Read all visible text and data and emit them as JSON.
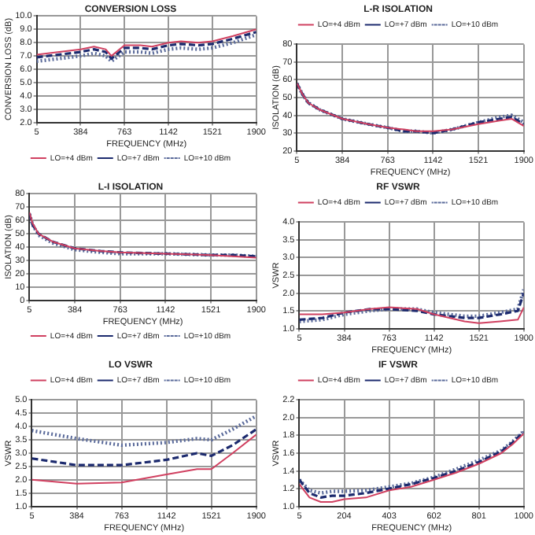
{
  "chart_data": [
    {
      "type": "line",
      "title": "CONVERSION LOSS",
      "xlabel": "FREQUENCY (MHz)",
      "ylabel": "CONVERSION LOSS (dB)",
      "xlim": [
        5,
        1900
      ],
      "xticks": [
        5,
        384,
        763,
        1142,
        1521,
        1900
      ],
      "ylim": [
        2,
        10
      ],
      "yticks": [
        {
          "value": 2,
          "label": "2.0"
        },
        {
          "value": 3,
          "label": "3.0"
        },
        {
          "value": 4,
          "label": "4.0"
        },
        {
          "value": 5,
          "label": "5.0"
        },
        {
          "value": 6,
          "label": "6.0"
        },
        {
          "value": 7,
          "label": "7.0"
        },
        {
          "value": 8,
          "label": "8.0"
        },
        {
          "value": 9,
          "label": "9.0"
        },
        {
          "value": 10,
          "label": "10.0"
        }
      ],
      "grid": true,
      "legend": "bottom",
      "marker": "none",
      "series": [
        {
          "name": "LO=+4 dBm",
          "color": "#d04060",
          "line_style": "solid",
          "x": [
            5,
            200,
            384,
            500,
            600,
            650,
            763,
            900,
            1000,
            1142,
            1250,
            1400,
            1521,
            1700,
            1900
          ],
          "values": [
            7.1,
            7.3,
            7.5,
            7.7,
            7.5,
            7.0,
            7.8,
            7.8,
            7.7,
            8.0,
            8.1,
            8.0,
            8.1,
            8.5,
            9.0
          ]
        },
        {
          "name": "LO=+7 dBm",
          "color": "#1c2a6e",
          "line_style": "dashed",
          "x": [
            5,
            200,
            384,
            500,
            600,
            650,
            763,
            900,
            1000,
            1142,
            1250,
            1400,
            1521,
            1700,
            1900
          ],
          "values": [
            6.9,
            7.1,
            7.3,
            7.5,
            7.3,
            6.8,
            7.6,
            7.6,
            7.5,
            7.8,
            7.9,
            7.8,
            7.9,
            8.3,
            8.8
          ]
        },
        {
          "name": "LO=+10 dBm",
          "color": "#5a6a9a",
          "line_style": "dotted",
          "x": [
            5,
            200,
            384,
            500,
            600,
            650,
            763,
            900,
            1000,
            1142,
            1250,
            1400,
            1521,
            1700,
            1900
          ],
          "values": [
            6.6,
            6.8,
            7.0,
            7.2,
            7.0,
            6.6,
            7.3,
            7.3,
            7.2,
            7.5,
            7.6,
            7.5,
            7.6,
            8.0,
            8.6
          ]
        }
      ]
    },
    {
      "type": "line",
      "title": "L-R ISOLATION",
      "xlabel": "FREQUENCY (MHz)",
      "ylabel": "ISOLATION (dB)",
      "xlim": [
        5,
        1900
      ],
      "xticks": [
        5,
        384,
        763,
        1142,
        1521,
        1900
      ],
      "ylim": [
        20,
        80
      ],
      "yticks": [
        20,
        30,
        40,
        50,
        60,
        70,
        80
      ],
      "grid": true,
      "legend": "top",
      "marker": "none",
      "series": [
        {
          "name": "LO=+4 dBm",
          "color": "#d04060",
          "line_style": "solid",
          "x": [
            5,
            50,
            100,
            200,
            384,
            600,
            763,
            900,
            1000,
            1142,
            1300,
            1521,
            1700,
            1800,
            1900
          ],
          "values": [
            58,
            52,
            47,
            43,
            38,
            35,
            33,
            32,
            31,
            31,
            32,
            35,
            37,
            38,
            34
          ]
        },
        {
          "name": "LO=+7 dBm",
          "color": "#1c2a6e",
          "line_style": "dashed",
          "x": [
            5,
            50,
            100,
            200,
            384,
            600,
            763,
            900,
            1000,
            1142,
            1300,
            1521,
            1700,
            1800,
            1900
          ],
          "values": [
            58,
            52,
            47,
            43,
            38,
            35,
            33,
            31,
            31,
            30,
            32,
            36,
            38,
            39,
            35
          ]
        },
        {
          "name": "LO=+10 dBm",
          "color": "#5a6a9a",
          "line_style": "dotted",
          "x": [
            5,
            50,
            100,
            200,
            384,
            600,
            763,
            900,
            1000,
            1142,
            1300,
            1521,
            1700,
            1800,
            1900
          ],
          "values": [
            58,
            52,
            47,
            43,
            38,
            35,
            33,
            31,
            31,
            30,
            32,
            36,
            39,
            40,
            36
          ]
        }
      ]
    },
    {
      "type": "line",
      "title": "L-I ISOLATION",
      "xlabel": "FREQUENCY (MHz)",
      "ylabel": "ISOLATION (dB)",
      "xlim": [
        5,
        1900
      ],
      "xticks": [
        5,
        384,
        763,
        1142,
        1521,
        1900
      ],
      "ylim": [
        0,
        80
      ],
      "yticks": [
        0,
        10,
        20,
        30,
        40,
        50,
        60,
        70,
        80
      ],
      "grid": true,
      "legend": "bottom",
      "marker": "none",
      "series": [
        {
          "name": "LO=+4 dBm",
          "color": "#d04060",
          "line_style": "solid",
          "x": [
            5,
            30,
            80,
            200,
            384,
            600,
            763,
            1142,
            1521,
            1700,
            1900
          ],
          "values": [
            66,
            58,
            50,
            44,
            39,
            37,
            36,
            35,
            34,
            33,
            32
          ]
        },
        {
          "name": "LO=+7 dBm",
          "color": "#1c2a6e",
          "line_style": "dashed",
          "x": [
            5,
            30,
            80,
            200,
            384,
            600,
            763,
            1142,
            1521,
            1700,
            1900
          ],
          "values": [
            65,
            57,
            50,
            44,
            39,
            37,
            36,
            35,
            34,
            34,
            33
          ]
        },
        {
          "name": "LO=+10 dBm",
          "color": "#5a6a9a",
          "line_style": "dotted",
          "x": [
            5,
            30,
            80,
            200,
            384,
            600,
            763,
            1142,
            1521,
            1700,
            1900
          ],
          "values": [
            65,
            57,
            49,
            43,
            38,
            36,
            35,
            35,
            34,
            34,
            33
          ]
        }
      ]
    },
    {
      "type": "line",
      "title": "RF VSWR",
      "xlabel": "FREQUENCY (MHz)",
      "ylabel": "VSWR",
      "xlim": [
        5,
        1900
      ],
      "xticks": [
        5,
        384,
        763,
        1142,
        1521,
        1900
      ],
      "ylim": [
        1,
        4
      ],
      "yticks": [
        {
          "value": 1,
          "label": "1.0"
        },
        1.5,
        {
          "value": 2,
          "label": "2.0"
        },
        2.5,
        {
          "value": 3,
          "label": "3.0"
        },
        3.5,
        {
          "value": 4,
          "label": "4.0"
        }
      ],
      "grid": true,
      "legend": "top",
      "marker": "none",
      "series": [
        {
          "name": "LO=+4 dBm",
          "color": "#d04060",
          "line_style": "solid",
          "x": [
            5,
            200,
            384,
            600,
            763,
            1000,
            1142,
            1400,
            1521,
            1700,
            1850,
            1900
          ],
          "values": [
            1.4,
            1.4,
            1.45,
            1.55,
            1.6,
            1.55,
            1.4,
            1.2,
            1.15,
            1.2,
            1.25,
            1.6
          ]
        },
        {
          "name": "LO=+7 dBm",
          "color": "#1c2a6e",
          "line_style": "dashed",
          "x": [
            5,
            200,
            384,
            600,
            763,
            1000,
            1142,
            1400,
            1521,
            1700,
            1850,
            1900
          ],
          "values": [
            1.25,
            1.3,
            1.45,
            1.55,
            1.55,
            1.5,
            1.4,
            1.3,
            1.3,
            1.4,
            1.5,
            2.0
          ]
        },
        {
          "name": "LO=+10 dBm",
          "color": "#5a6a9a",
          "line_style": "dotted",
          "x": [
            5,
            200,
            384,
            600,
            763,
            1000,
            1142,
            1400,
            1521,
            1700,
            1850,
            1900
          ],
          "values": [
            1.2,
            1.25,
            1.4,
            1.5,
            1.55,
            1.55,
            1.45,
            1.35,
            1.35,
            1.45,
            1.55,
            2.1
          ]
        }
      ]
    },
    {
      "type": "line",
      "title": "LO VSWR",
      "xlabel": "FREQUENCY (MHz)",
      "ylabel": "VSWR",
      "xlim": [
        5,
        1900
      ],
      "xticks": [
        5,
        384,
        763,
        1142,
        1521,
        1900
      ],
      "ylim": [
        1,
        5
      ],
      "yticks": [
        {
          "value": 1,
          "label": "1.0"
        },
        1.5,
        {
          "value": 2,
          "label": "2.0"
        },
        2.5,
        {
          "value": 3,
          "label": "3.0"
        },
        3.5,
        {
          "value": 4,
          "label": "4.0"
        },
        4.5,
        {
          "value": 5,
          "label": "5.0"
        }
      ],
      "grid": true,
      "legend": "top",
      "marker": "none",
      "series": [
        {
          "name": "LO=+4 dBm",
          "color": "#d04060",
          "line_style": "solid",
          "x": [
            5,
            384,
            763,
            1142,
            1400,
            1521,
            1700,
            1900
          ],
          "values": [
            2.0,
            1.85,
            1.9,
            2.2,
            2.4,
            2.4,
            3.0,
            3.7
          ]
        },
        {
          "name": "LO=+7 dBm",
          "color": "#1c2a6e",
          "line_style": "dashed",
          "x": [
            5,
            384,
            763,
            1142,
            1400,
            1521,
            1700,
            1900
          ],
          "values": [
            2.8,
            2.55,
            2.55,
            2.75,
            3.0,
            2.9,
            3.3,
            3.9
          ]
        },
        {
          "name": "LO=+10 dBm",
          "color": "#5a6a9a",
          "line_style": "dotted",
          "x": [
            5,
            384,
            763,
            1142,
            1400,
            1521,
            1700,
            1900
          ],
          "values": [
            3.85,
            3.55,
            3.3,
            3.4,
            3.55,
            3.5,
            3.9,
            4.4
          ]
        }
      ]
    },
    {
      "type": "line",
      "title": "IF VSWR",
      "xlabel": "FREQUENCY (MHz)",
      "ylabel": "VSWR",
      "xlim": [
        5,
        1000
      ],
      "xticks": [
        5,
        204,
        403,
        602,
        801,
        1000
      ],
      "ylim": [
        1,
        2.2
      ],
      "yticks": [
        {
          "value": 1,
          "label": "1.0"
        },
        1.2,
        1.4,
        1.6,
        1.8,
        {
          "value": 2,
          "label": "2.0"
        },
        2.2
      ],
      "grid": true,
      "legend": "top",
      "marker": "none",
      "series": [
        {
          "name": "LO=+4 dBm",
          "color": "#d04060",
          "line_style": "solid",
          "x": [
            5,
            50,
            100,
            150,
            204,
            300,
            403,
            500,
            602,
            700,
            801,
            900,
            950,
            1000
          ],
          "values": [
            1.25,
            1.1,
            1.05,
            1.05,
            1.08,
            1.1,
            1.18,
            1.22,
            1.3,
            1.38,
            1.48,
            1.6,
            1.7,
            1.82
          ]
        },
        {
          "name": "LO=+7 dBm",
          "color": "#1c2a6e",
          "line_style": "dashed",
          "x": [
            5,
            50,
            100,
            150,
            204,
            300,
            403,
            500,
            602,
            700,
            801,
            900,
            950,
            1000
          ],
          "values": [
            1.3,
            1.15,
            1.1,
            1.12,
            1.12,
            1.15,
            1.2,
            1.25,
            1.32,
            1.4,
            1.5,
            1.62,
            1.72,
            1.84
          ]
        },
        {
          "name": "LO=+10 dBm",
          "color": "#5a6a9a",
          "line_style": "dotted",
          "x": [
            5,
            50,
            100,
            150,
            204,
            300,
            403,
            500,
            602,
            700,
            801,
            900,
            950,
            1000
          ],
          "values": [
            1.3,
            1.18,
            1.15,
            1.17,
            1.17,
            1.18,
            1.22,
            1.26,
            1.33,
            1.42,
            1.52,
            1.63,
            1.73,
            1.85
          ]
        }
      ]
    }
  ]
}
